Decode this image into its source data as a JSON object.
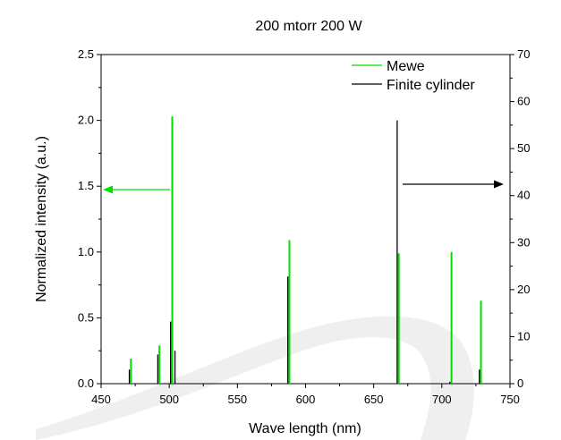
{
  "chart_data": {
    "type": "bar",
    "title": "200 mtorr 200 W",
    "xlabel": "Wave length (nm)",
    "ylabel": "Normalized intensity (a.u.)",
    "y2label": "",
    "xlim": [
      450,
      750
    ],
    "ylim": [
      0,
      2.5
    ],
    "y2lim": [
      0,
      70
    ],
    "xticks": [
      "450",
      "500",
      "550",
      "600",
      "650",
      "700",
      "750"
    ],
    "yticks": [
      "0.0",
      "0.5",
      "1.0",
      "1.5",
      "2.0",
      "2.5"
    ],
    "y2ticks": [
      "0",
      "10",
      "20",
      "30",
      "40",
      "50",
      "60",
      "70"
    ],
    "legend_position": "top-right",
    "grid": false,
    "series": [
      {
        "name": "Mewe",
        "axis": "left",
        "color": "#00e000",
        "x": [
          471.3,
          492.2,
          501.6,
          587.6,
          667.8,
          706.5,
          728.1
        ],
        "values": [
          0.19,
          0.29,
          2.03,
          1.09,
          0.99,
          1.0,
          0.63
        ]
      },
      {
        "name": "Finite cylinder",
        "axis": "right",
        "color": "#000000",
        "x": [
          471.3,
          492.2,
          501.6,
          504.8,
          587.6,
          667.8,
          706.5,
          728.1
        ],
        "values": [
          3.0,
          6.2,
          13.2,
          7.0,
          22.8,
          56.0,
          0.4,
          3.0
        ]
      }
    ],
    "annotations": [
      {
        "type": "arrow",
        "direction": "left",
        "color": "#00e000",
        "meaning": "Mewe uses left axis"
      },
      {
        "type": "arrow",
        "direction": "right",
        "color": "#000000",
        "meaning": "Finite cylinder uses right axis"
      }
    ]
  }
}
